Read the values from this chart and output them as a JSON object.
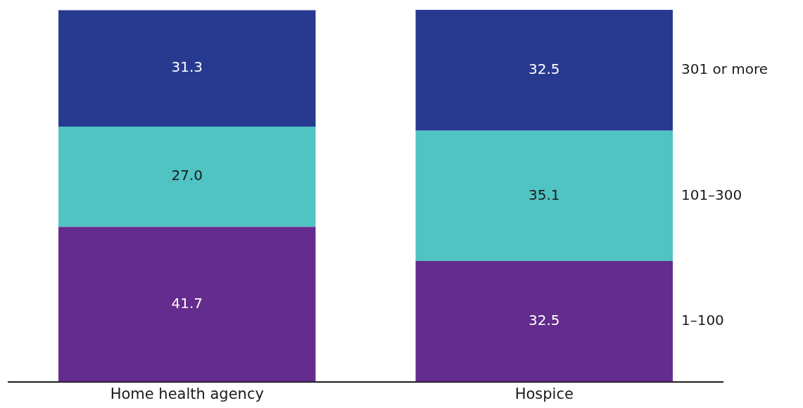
{
  "chart_data": {
    "type": "bar",
    "stacked": true,
    "categories": [
      "Home health agency",
      "Hospice"
    ],
    "series": [
      {
        "name": "1–100",
        "color": "#642c8c",
        "values": [
          41.7,
          32.5
        ],
        "value_labels": [
          "41.7",
          "32.5"
        ]
      },
      {
        "name": "101–300",
        "color": "#50c3c3",
        "values": [
          27.0,
          35.1
        ],
        "value_labels": [
          "27.0",
          "35.1"
        ]
      },
      {
        "name": "301 or more",
        "color": "#283a90",
        "values": [
          31.3,
          32.5
        ],
        "value_labels": [
          "31.3",
          "32.5"
        ]
      }
    ],
    "grid": false
  }
}
